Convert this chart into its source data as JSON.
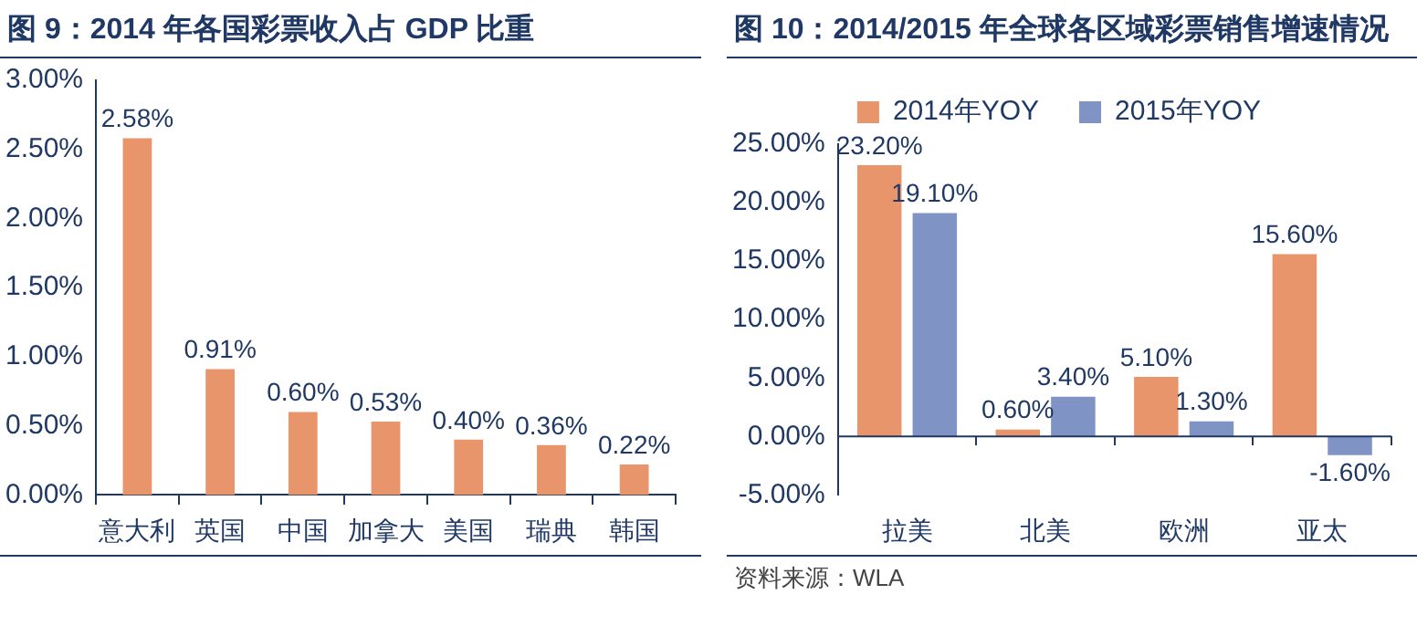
{
  "chart_data": [
    {
      "type": "bar",
      "title": "图 9：2014 年各国彩票收入占 GDP 比重",
      "categories": [
        "意大利",
        "英国",
        "中国",
        "加拿大",
        "美国",
        "瑞典",
        "韩国"
      ],
      "series": [
        {
          "color": "#e8956c",
          "values": [
            2.58,
            0.91,
            0.6,
            0.53,
            0.4,
            0.36,
            0.22
          ],
          "value_labels": [
            "2.58%",
            "0.91%",
            "0.60%",
            "0.53%",
            "0.40%",
            "0.36%",
            "0.22%"
          ]
        }
      ],
      "ylim": [
        0,
        3
      ],
      "yticks": [
        {
          "value": 0,
          "label": "0.00%"
        },
        {
          "value": 0.5,
          "label": "0.50%"
        },
        {
          "value": 1,
          "label": "1.00%"
        },
        {
          "value": 1.5,
          "label": "1.50%"
        },
        {
          "value": 2,
          "label": "2.00%"
        },
        {
          "value": 2.5,
          "label": "2.50%"
        },
        {
          "value": 3,
          "label": "3.00%"
        }
      ],
      "grid": false,
      "legend": false
    },
    {
      "type": "bar",
      "title": "图 10：2014/2015 年全球各区域彩票销售增速情况",
      "categories": [
        "拉美",
        "北美",
        "欧洲",
        "亚太"
      ],
      "series": [
        {
          "name": "2014年YOY",
          "color": "#e8956c",
          "values": [
            23.2,
            0.6,
            5.1,
            15.6
          ],
          "value_labels": [
            "23.20%",
            "0.60%",
            "5.10%",
            "15.60%"
          ]
        },
        {
          "name": "2015年YOY",
          "color": "#7f93c4",
          "values": [
            19.1,
            3.4,
            1.3,
            -1.6
          ],
          "value_labels": [
            "19.10%",
            "3.40%",
            "1.30%",
            "-1.60%"
          ]
        }
      ],
      "ylim": [
        -5,
        25
      ],
      "yticks": [
        {
          "value": -5,
          "label": "-5.00%"
        },
        {
          "value": 0,
          "label": "0.00%"
        },
        {
          "value": 5,
          "label": "5.00%"
        },
        {
          "value": 10,
          "label": "10.00%"
        },
        {
          "value": 15,
          "label": "15.00%"
        },
        {
          "value": 20,
          "label": "20.00%"
        },
        {
          "value": 25,
          "label": "25.00%"
        }
      ],
      "grid": false,
      "legend": "top",
      "ref_lines": [
        {
          "axis": "y",
          "value": 0,
          "color": "#1f3864"
        }
      ],
      "annotations": [
        "资料来源：WLA"
      ]
    }
  ]
}
